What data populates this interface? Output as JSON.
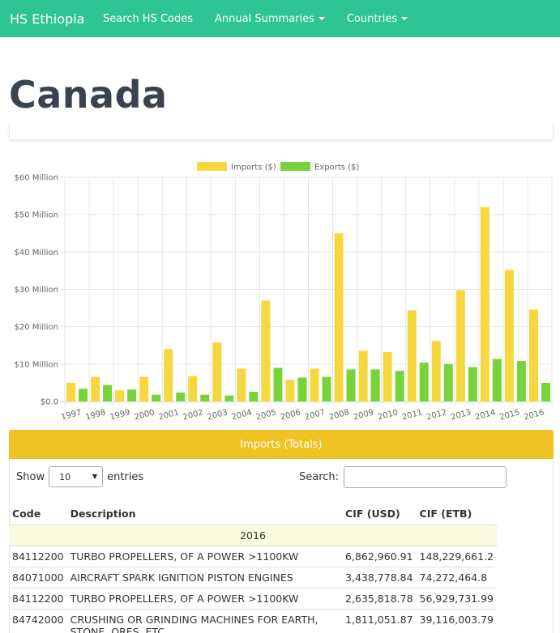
{
  "navbar": {
    "brand": "HS Ethiopia",
    "links": [
      {
        "label": "Search HS Codes",
        "dropdown": false
      },
      {
        "label": "Annual Summaries",
        "dropdown": true
      },
      {
        "label": "Countries",
        "dropdown": true
      }
    ],
    "color": "#2fc494"
  },
  "page_title": "Canada",
  "chart_data": {
    "type": "bar",
    "categories": [
      "1997",
      "1998",
      "1999",
      "2000",
      "2001",
      "2002",
      "2003",
      "2004",
      "2005",
      "2006",
      "2007",
      "2008",
      "2009",
      "2010",
      "2011",
      "2012",
      "2013",
      "2014",
      "2015",
      "2016"
    ],
    "series": [
      {
        "name": "Imports ($)",
        "color": "#f5d83e",
        "values": [
          5.0,
          6.6,
          3.0,
          6.6,
          14.0,
          6.8,
          15.8,
          8.8,
          27.0,
          5.8,
          8.8,
          45.0,
          13.6,
          13.2,
          24.4,
          16.2,
          29.8,
          52.0,
          35.2,
          24.6
        ]
      },
      {
        "name": "Exports ($)",
        "color": "#78d239",
        "values": [
          3.4,
          4.4,
          3.2,
          1.8,
          2.4,
          1.8,
          1.6,
          2.6,
          9.0,
          6.4,
          6.6,
          8.6,
          8.6,
          8.2,
          10.4,
          10.0,
          9.2,
          11.4,
          10.8,
          5.0
        ]
      }
    ],
    "yticks": [
      "$0.0",
      "$10 Million",
      "$20 Million",
      "$30 Million",
      "$40 Million",
      "$50 Million",
      "$60 Million"
    ],
    "ylim": [
      0,
      60
    ],
    "unit": "Million USD",
    "legend_position": "top",
    "grid": true
  },
  "imports_panel": {
    "title": "Imports (Totals)",
    "show_label": "Show",
    "entries_value": "10",
    "entries_label": "entries",
    "search_label": "Search:",
    "search_value": "",
    "columns": [
      "Code",
      "Description",
      "CIF (USD)",
      "CIF (ETB)"
    ],
    "group": "2016",
    "rows": [
      {
        "code": "84112200",
        "description": "TURBO PROPELLERS, OF A POWER >1100KW",
        "cif_usd": "6,862,960.91",
        "cif_etb": "148,229,661.2"
      },
      {
        "code": "84071000",
        "description": "AIRCRAFT SPARK IGNITION PISTON ENGINES",
        "cif_usd": "3,438,778.84",
        "cif_etb": "74,272,464.8"
      },
      {
        "code": "84112200",
        "description": "TURBO PROPELLERS, OF A POWER >1100KW",
        "cif_usd": "2,635,818.78",
        "cif_etb": "56,929,731.99"
      },
      {
        "code": "84742000",
        "description": "CRUSHING OR GRINDING MACHINES FOR EARTH, STONE, ORES, ETC",
        "cif_usd": "1,811,051.87",
        "cif_etb": "39,116,003.79"
      }
    ]
  }
}
